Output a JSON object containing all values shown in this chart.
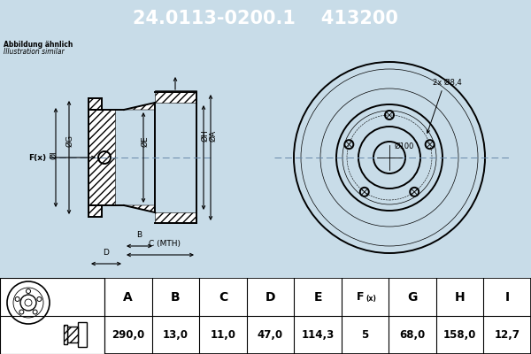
{
  "title_part": "24.0113-0200.1",
  "title_code": "413200",
  "title_bg": "#0000cc",
  "title_fg": "#ffffff",
  "note_line1": "Abbildung ähnlich",
  "note_line2": "Illustration similar",
  "bg_color": "#c8dce8",
  "table_headers": [
    "A",
    "B",
    "C",
    "D",
    "E",
    "F(x)",
    "G",
    "H",
    "I"
  ],
  "table_values": [
    "290,0",
    "13,0",
    "11,0",
    "47,0",
    "114,3",
    "5",
    "68,0",
    "158,0",
    "12,7"
  ],
  "bolt_circle_label": "Ø100",
  "bolt_hole_label": "2x Ø8,4"
}
